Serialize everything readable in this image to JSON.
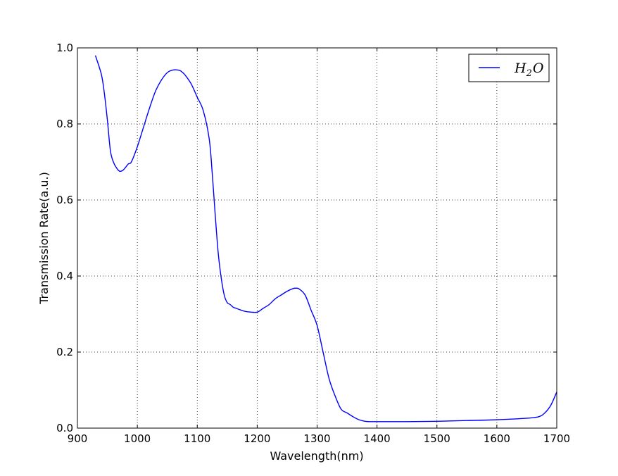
{
  "chart_data": {
    "type": "line",
    "xlabel": "Wavelength(nm)",
    "ylabel": "Transmission Rate(a.u.)",
    "xlim": [
      900,
      1700
    ],
    "ylim": [
      0.0,
      1.0
    ],
    "xticks": [
      "900",
      "1000",
      "1100",
      "1200",
      "1300",
      "1400",
      "1500",
      "1600",
      "1700"
    ],
    "yticks": [
      "0.0",
      "0.2",
      "0.4",
      "0.6",
      "0.8",
      "1.0"
    ],
    "grid": true,
    "legend_position": "top-right",
    "series": [
      {
        "name": "H2O",
        "color": "#0000ff",
        "x": [
          930,
          940,
          945,
          950,
          955,
          960,
          965,
          970,
          975,
          980,
          985,
          990,
          1000,
          1010,
          1020,
          1030,
          1040,
          1050,
          1060,
          1070,
          1075,
          1080,
          1090,
          1100,
          1110,
          1120,
          1125,
          1130,
          1135,
          1140,
          1145,
          1150,
          1155,
          1160,
          1165,
          1170,
          1180,
          1190,
          1200,
          1210,
          1220,
          1230,
          1240,
          1250,
          1260,
          1265,
          1270,
          1280,
          1290,
          1300,
          1310,
          1320,
          1330,
          1340,
          1350,
          1360,
          1370,
          1380,
          1390,
          1400,
          1450,
          1500,
          1550,
          1600,
          1650,
          1670,
          1680,
          1690,
          1700
        ],
        "y": [
          0.98,
          0.93,
          0.88,
          0.81,
          0.73,
          0.7,
          0.685,
          0.676,
          0.677,
          0.685,
          0.695,
          0.7,
          0.74,
          0.79,
          0.84,
          0.885,
          0.915,
          0.935,
          0.942,
          0.941,
          0.936,
          0.928,
          0.905,
          0.87,
          0.835,
          0.76,
          0.67,
          0.56,
          0.46,
          0.395,
          0.35,
          0.33,
          0.325,
          0.318,
          0.315,
          0.312,
          0.307,
          0.305,
          0.305,
          0.315,
          0.325,
          0.34,
          0.35,
          0.36,
          0.367,
          0.368,
          0.366,
          0.35,
          0.31,
          0.27,
          0.2,
          0.13,
          0.085,
          0.05,
          0.04,
          0.03,
          0.022,
          0.018,
          0.017,
          0.017,
          0.017,
          0.018,
          0.02,
          0.022,
          0.026,
          0.03,
          0.04,
          0.06,
          0.095
        ]
      }
    ]
  },
  "legend": {
    "var": "H",
    "sub": "2",
    "rest": "O"
  }
}
